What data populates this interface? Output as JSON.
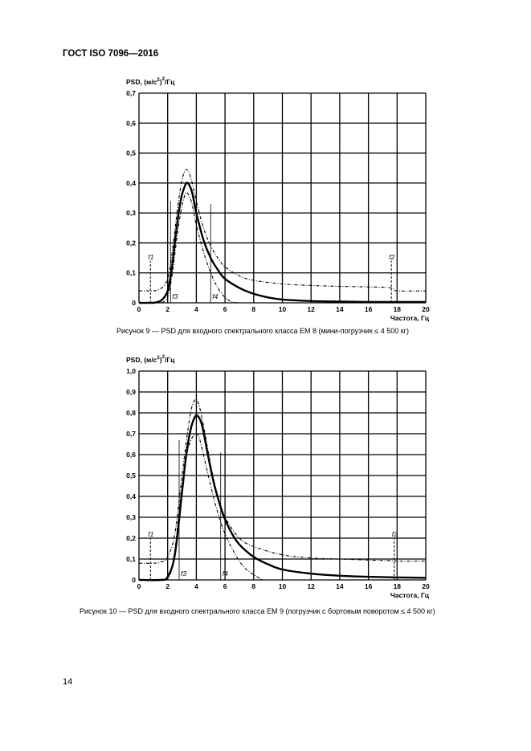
{
  "header": {
    "title": "ГОСТ ISO 7096—2016"
  },
  "page_number": "14",
  "chart_data": [
    {
      "type": "line",
      "title": "",
      "caption": "Рисунок 9 — PSD для входного спектрального класса ЕМ 8  (мини-погрузчик ≤ 4 500 кг)",
      "ylabel_parts": {
        "base": "PSD, (м/с",
        "sup": "2",
        "tail": ")",
        "sup2": "2",
        "unit": "/Гц"
      },
      "xlabel": "Частота, Гц",
      "xlim": [
        0,
        20
      ],
      "ylim": [
        0,
        0.7
      ],
      "x_ticks": [
        0,
        2,
        4,
        6,
        8,
        10,
        12,
        14,
        16,
        18,
        20
      ],
      "x_tick_labels": [
        "0",
        "2",
        "4",
        "6",
        "8",
        "10",
        "12",
        "14",
        "16",
        "18",
        "20"
      ],
      "y_ticks": [
        0,
        0.1,
        0.2,
        0.3,
        0.4,
        0.5,
        0.6,
        0.7
      ],
      "y_tick_labels": [
        "0",
        "0,1",
        "0,2",
        "0,3",
        "0,4",
        "0,5",
        "0,6",
        "0,7"
      ],
      "grid": true,
      "markers": [
        {
          "label": "f1",
          "x": 0.8,
          "y_top": 0.14,
          "style": "dashed"
        },
        {
          "label": "f2",
          "x": 17.6,
          "y_top": 0.14,
          "style": "dashed"
        },
        {
          "label": "f3",
          "x": 2.2,
          "y_top": 0.34,
          "style": "solid"
        },
        {
          "label": "f4",
          "x": 5.0,
          "y_top": 0.33,
          "style": "solid"
        }
      ],
      "series": [
        {
          "name": "upper_tolerance",
          "style": "dash-dot",
          "x": [
            0,
            0.5,
            1.0,
            1.4,
            1.8,
            2.1,
            2.4,
            2.7,
            3.0,
            3.3,
            3.6,
            4.0,
            4.5,
            5.0,
            5.5,
            6.0,
            7.0,
            8.0,
            10.0,
            12.0,
            14.0,
            16.0,
            17.6,
            18.0,
            20.0
          ],
          "y": [
            0.04,
            0.04,
            0.04,
            0.045,
            0.06,
            0.1,
            0.2,
            0.32,
            0.41,
            0.445,
            0.42,
            0.34,
            0.25,
            0.19,
            0.15,
            0.12,
            0.09,
            0.075,
            0.063,
            0.058,
            0.055,
            0.053,
            0.05,
            0.04,
            0.04
          ]
        },
        {
          "name": "psd",
          "style": "solid-thick",
          "x": [
            0,
            1.0,
            1.3,
            1.6,
            2.0,
            2.3,
            2.6,
            2.9,
            3.2,
            3.4,
            3.7,
            4.0,
            4.5,
            5.0,
            5.5,
            6.0,
            7.0,
            8.0,
            9.0,
            10.0,
            12.0,
            14.0,
            16.0,
            18.0,
            20.0
          ],
          "y": [
            0,
            0,
            0.003,
            0.01,
            0.04,
            0.12,
            0.24,
            0.34,
            0.39,
            0.4,
            0.37,
            0.3,
            0.21,
            0.15,
            0.11,
            0.08,
            0.05,
            0.03,
            0.018,
            0.011,
            0.006,
            0.004,
            0.003,
            0.003,
            0.003
          ]
        },
        {
          "name": "lower_tolerance",
          "style": "dash-dot",
          "x": [
            1.6,
            2.0,
            2.3,
            2.6,
            2.9,
            3.2,
            3.4,
            3.7,
            4.0,
            4.5,
            5.0,
            5.5,
            6.0,
            6.5,
            7.0
          ],
          "y": [
            0,
            0.02,
            0.09,
            0.2,
            0.3,
            0.36,
            0.365,
            0.33,
            0.26,
            0.17,
            0.1,
            0.05,
            0.018,
            0.003,
            0
          ]
        }
      ]
    },
    {
      "type": "line",
      "title": "",
      "caption": "Рисунок 10 — PSD для входного спектрального класса ЕМ 9 (погрузчик с бортовым поворотом ≤ 4 500 кг)",
      "ylabel_parts": {
        "base": "PSD, (м/с",
        "sup": "2",
        "tail": ")",
        "sup2": "2",
        "unit": "/Гц"
      },
      "xlabel": "Частота, Гц",
      "xlim": [
        0,
        20
      ],
      "ylim": [
        0,
        1.0
      ],
      "x_ticks": [
        0,
        2,
        4,
        6,
        8,
        10,
        12,
        14,
        16,
        18,
        20
      ],
      "x_tick_labels": [
        "0",
        "2",
        "4",
        "6",
        "8",
        "10",
        "12",
        "14",
        "16",
        "18",
        "20"
      ],
      "y_ticks": [
        0,
        0.1,
        0.2,
        0.3,
        0.4,
        0.5,
        0.6,
        0.7,
        0.8,
        0.9,
        1.0
      ],
      "y_tick_labels": [
        "0",
        "0,1",
        "0,2",
        "0,3",
        "0,4",
        "0,5",
        "0,6",
        "0,7",
        "0,8",
        "0,9",
        "1,0"
      ],
      "grid": true,
      "markers": [
        {
          "label": "f1",
          "x": 0.8,
          "y_top": 0.2,
          "style": "dashed"
        },
        {
          "label": "f2",
          "x": 17.8,
          "y_top": 0.2,
          "style": "dashed"
        },
        {
          "label": "f3",
          "x": 2.8,
          "y_top": 0.67,
          "style": "solid"
        },
        {
          "label": "f4",
          "x": 5.7,
          "y_top": 0.61,
          "style": "solid"
        }
      ],
      "series": [
        {
          "name": "upper_tolerance",
          "style": "dash-dot",
          "x": [
            0,
            1.0,
            1.5,
            2.0,
            2.5,
            3.0,
            3.5,
            3.8,
            4.1,
            4.5,
            5.0,
            5.5,
            6.0,
            7.0,
            8.0,
            10.0,
            12.0,
            14.0,
            16.0,
            17.8,
            18.0,
            20.0
          ],
          "y": [
            0.08,
            0.08,
            0.085,
            0.11,
            0.22,
            0.5,
            0.76,
            0.85,
            0.855,
            0.74,
            0.55,
            0.4,
            0.3,
            0.2,
            0.16,
            0.12,
            0.105,
            0.1,
            0.095,
            0.092,
            0.09,
            0.09
          ]
        },
        {
          "name": "psd",
          "style": "solid-thick",
          "x": [
            0,
            1.5,
            2.0,
            2.5,
            3.0,
            3.3,
            3.6,
            3.9,
            4.1,
            4.4,
            4.8,
            5.2,
            5.6,
            6.0,
            6.5,
            7.0,
            8.0,
            9.0,
            10.0,
            12.0,
            14.0,
            16.0,
            18.0,
            20.0
          ],
          "y": [
            0,
            0,
            0.015,
            0.12,
            0.42,
            0.6,
            0.72,
            0.78,
            0.785,
            0.74,
            0.6,
            0.47,
            0.37,
            0.29,
            0.22,
            0.17,
            0.11,
            0.075,
            0.05,
            0.03,
            0.02,
            0.015,
            0.012,
            0.01
          ]
        },
        {
          "name": "lower_tolerance",
          "style": "dash-dot",
          "x": [
            1.9,
            2.2,
            2.5,
            2.8,
            3.1,
            3.4,
            3.7,
            4.0,
            4.2,
            4.5,
            5.0,
            5.5,
            6.0,
            6.5,
            7.0,
            7.5,
            8.0,
            8.6
          ],
          "y": [
            0,
            0.03,
            0.14,
            0.33,
            0.5,
            0.62,
            0.68,
            0.7,
            0.68,
            0.6,
            0.45,
            0.32,
            0.22,
            0.15,
            0.09,
            0.05,
            0.025,
            0
          ]
        }
      ]
    }
  ]
}
